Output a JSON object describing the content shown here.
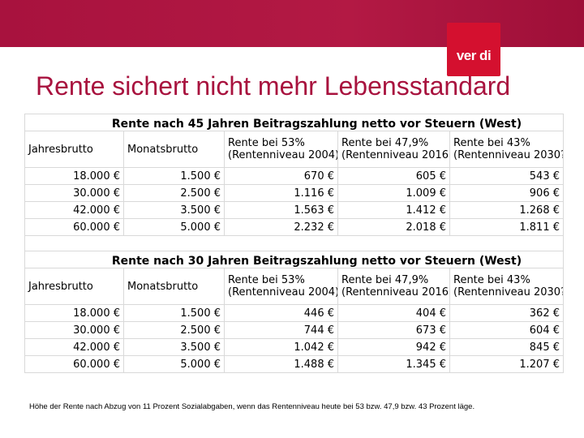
{
  "logo": {
    "text": "ver di",
    "color": "#d4102f"
  },
  "banner": {
    "color": "#a8123e"
  },
  "title": "Rente sichert nicht mehr Lebensstandard",
  "headers": {
    "col1": "Jahresbrutto",
    "col2": "Monatsbrutto",
    "col3_line1": "Rente bei 53%",
    "col3_line2": "(Rentenniveau 2004)",
    "col4_line1": "Rente bei 47,9%",
    "col4_line2": "(Rentenniveau 2016)",
    "col5_line1": "Rente bei 43%",
    "col5_line2": "(Rentenniveau 2030?)"
  },
  "section1": {
    "title": "Rente nach 45 Jahren Beitragszahlung netto vor Steuern (West)",
    "rows": [
      [
        "18.000 €",
        "1.500 €",
        "670 €",
        "605 €",
        "543 €"
      ],
      [
        "30.000 €",
        "2.500 €",
        "1.116 €",
        "1.009 €",
        "906 €"
      ],
      [
        "42.000 €",
        "3.500 €",
        "1.563 €",
        "1.412 €",
        "1.268 €"
      ],
      [
        "60.000 €",
        "5.000 €",
        "2.232 €",
        "2.018 €",
        "1.811 €"
      ]
    ]
  },
  "section2": {
    "title": "Rente nach 30 Jahren Beitragszahlung netto vor Steuern (West)",
    "rows": [
      [
        "18.000 €",
        "1.500 €",
        "446 €",
        "404 €",
        "362 €"
      ],
      [
        "30.000 €",
        "2.500 €",
        "744 €",
        "673 €",
        "604 €"
      ],
      [
        "42.000 €",
        "3.500 €",
        "1.042 €",
        "942 €",
        "845 €"
      ],
      [
        "60.000 €",
        "5.000 €",
        "1.488 €",
        "1.345 €",
        "1.207 €"
      ]
    ]
  },
  "footnote": "Höhe der Rente nach Abzug von 11 Prozent Sozialabgaben, wenn das Rentenniveau heute bei  53 bzw. 47,9 bzw. 43 Prozent läge."
}
